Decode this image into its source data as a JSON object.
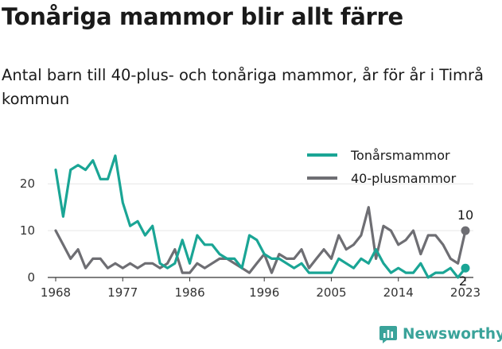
{
  "chart_data": {
    "type": "line",
    "title": "Tonåriga mammor blir allt färre",
    "subtitle": "Antal barn till 40-plus- och tonåriga mammor, år för år i Timrå kommun",
    "x": [
      1968,
      1969,
      1970,
      1971,
      1972,
      1973,
      1974,
      1975,
      1976,
      1977,
      1978,
      1979,
      1980,
      1981,
      1982,
      1983,
      1984,
      1985,
      1986,
      1987,
      1988,
      1989,
      1990,
      1991,
      1992,
      1993,
      1994,
      1995,
      1996,
      1997,
      1998,
      1999,
      2000,
      2001,
      2002,
      2003,
      2004,
      2005,
      2006,
      2007,
      2008,
      2009,
      2010,
      2011,
      2012,
      2013,
      2014,
      2015,
      2016,
      2017,
      2018,
      2019,
      2020,
      2021,
      2022,
      2023
    ],
    "x_ticks": [
      "1968",
      "1977",
      "1986",
      "1996",
      "2005",
      "2014",
      "2023"
    ],
    "y_ticks": [
      "0",
      "10",
      "20"
    ],
    "ylim": [
      0,
      27
    ],
    "xlim": [
      1968,
      2023
    ],
    "grid": true,
    "legend": "top-right",
    "series": [
      {
        "name": "Tonårsmammor",
        "color": "#1aa595",
        "values": [
          23,
          13,
          23,
          24,
          23,
          25,
          21,
          21,
          26,
          16,
          11,
          12,
          9,
          11,
          3,
          2,
          3,
          8,
          3,
          9,
          7,
          7,
          5,
          4,
          4,
          2,
          9,
          8,
          5,
          4,
          4,
          3,
          2,
          3,
          1,
          1,
          1,
          1,
          4,
          3,
          2,
          4,
          3,
          6,
          3,
          1,
          2,
          1,
          1,
          3,
          0,
          1,
          1,
          2,
          0,
          2
        ]
      },
      {
        "name": "40-plusmammor",
        "color": "#6e6e73",
        "values": [
          10,
          7,
          4,
          6,
          2,
          4,
          4,
          2,
          3,
          2,
          3,
          2,
          3,
          3,
          2,
          3,
          6,
          1,
          1,
          3,
          2,
          3,
          4,
          4,
          3,
          2,
          1,
          3,
          5,
          1,
          5,
          4,
          4,
          6,
          2,
          4,
          6,
          4,
          9,
          6,
          7,
          9,
          15,
          4,
          11,
          10,
          7,
          8,
          10,
          5,
          9,
          9,
          7,
          4,
          3,
          10
        ]
      }
    ],
    "end_labels": [
      "10",
      "2"
    ]
  },
  "brand": {
    "name": "Newsworthy"
  }
}
